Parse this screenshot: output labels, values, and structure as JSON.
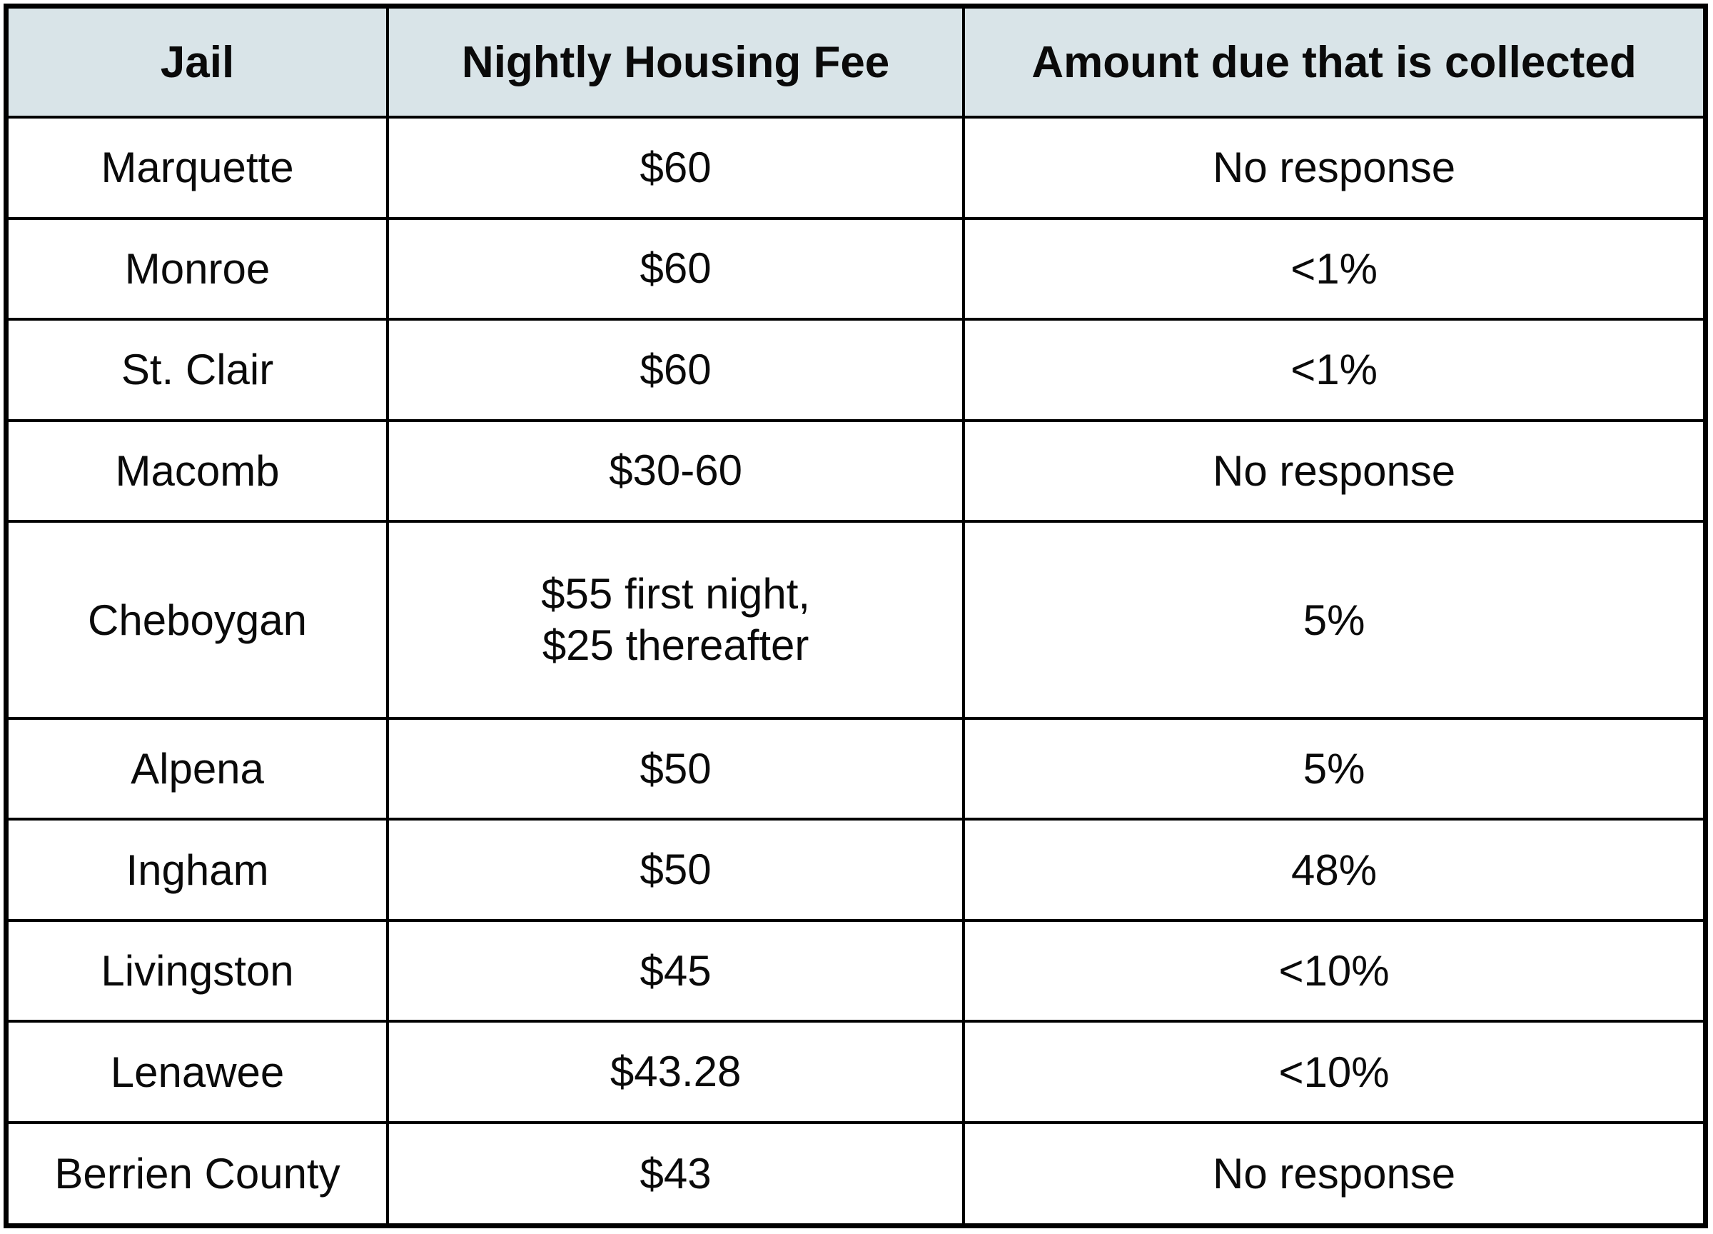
{
  "chart_data": {
    "type": "table",
    "title": "",
    "columns": [
      "Jail",
      "Nightly Housing Fee",
      "Amount due that is collected"
    ],
    "rows": [
      {
        "jail": "Marquette",
        "fee": "$60",
        "collected": "No response"
      },
      {
        "jail": "Monroe",
        "fee": "$60",
        "collected": "<1%"
      },
      {
        "jail": "St. Clair",
        "fee": "$60",
        "collected": "<1%"
      },
      {
        "jail": "Macomb",
        "fee": "$30-60",
        "collected": "No response"
      },
      {
        "jail": "Cheboygan",
        "fee": "$55 first night,\n$25 thereafter",
        "collected": "5%"
      },
      {
        "jail": "Alpena",
        "fee": "$50",
        "collected": "5%"
      },
      {
        "jail": "Ingham",
        "fee": "$50",
        "collected": "48%"
      },
      {
        "jail": "Livingston",
        "fee": "$45",
        "collected": "<10%"
      },
      {
        "jail": "Lenawee",
        "fee": "$43.28",
        "collected": "<10%"
      },
      {
        "jail": "Berrien County",
        "fee": "$43",
        "collected": "No response"
      }
    ],
    "layout": {
      "header_background": "#d9e4e8",
      "border_color": "#000000",
      "body_background": "#ffffff"
    }
  }
}
